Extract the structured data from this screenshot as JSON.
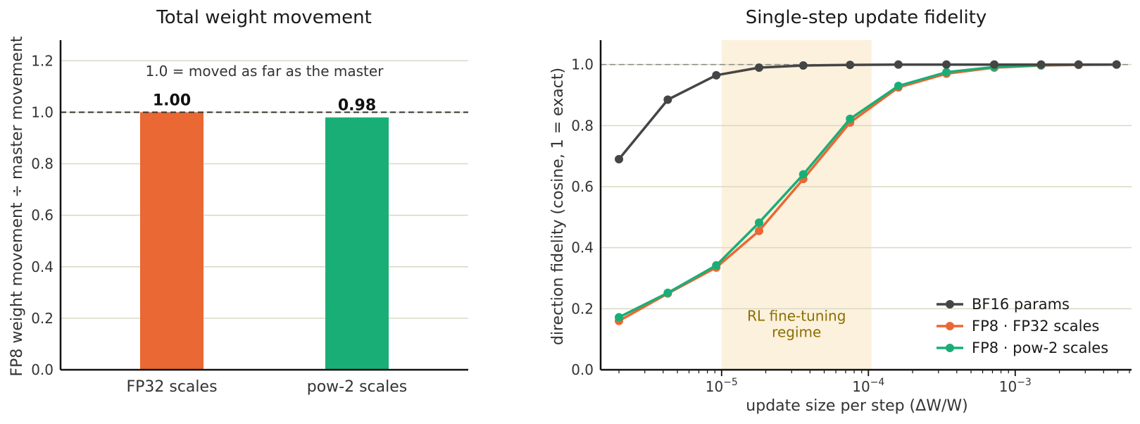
{
  "chart_data": [
    {
      "type": "bar",
      "title": "Total weight movement",
      "xlabel": "",
      "ylabel": "FP8 weight movement ÷ master movement",
      "categories": [
        "FP32 scales",
        "pow-2 scales"
      ],
      "values": [
        1.0,
        0.98
      ],
      "value_labels": [
        "1.00",
        "0.98"
      ],
      "colors": [
        "#e96834",
        "#1aae77"
      ],
      "ylim": [
        0,
        1.28
      ],
      "yticks": [
        0.0,
        0.2,
        0.4,
        0.6,
        0.8,
        1.0,
        1.2
      ],
      "ytick_labels": [
        "0.0",
        "0.2",
        "0.4",
        "0.6",
        "0.8",
        "1.0",
        "1.2"
      ],
      "reference_line": 1.0,
      "annotation": "1.0 = moved as far as the master",
      "grid": "horizontal"
    },
    {
      "type": "line",
      "title": "Single-step update fidelity",
      "xlabel": "update size per step (ΔW/W)",
      "ylabel": "direction fidelity (cosine, 1 = exact)",
      "xscale": "log",
      "xlim": [
        1.5e-06,
        0.0062
      ],
      "ylim": [
        0,
        1.08
      ],
      "yticks": [
        0.0,
        0.2,
        0.4,
        0.6,
        0.8,
        1.0
      ],
      "ytick_labels": [
        "0.0",
        "0.2",
        "0.4",
        "0.6",
        "0.8",
        "1.0"
      ],
      "xticks": [
        {
          "value": 1e-05,
          "base": "10",
          "exp": "−5"
        },
        {
          "value": 0.0001,
          "base": "10",
          "exp": "−4"
        },
        {
          "value": 0.001,
          "base": "10",
          "exp": "−3"
        }
      ],
      "reference_line": 1.0,
      "shaded_region": {
        "x": [
          1e-05,
          0.000105
        ],
        "label": [
          "RL fine-tuning",
          "regime"
        ],
        "color": "#fcf1dc"
      },
      "x": [
        2e-06,
        4.3e-06,
        9.2e-06,
        1.8e-05,
        3.6e-05,
        7.5e-05,
        0.00016,
        0.00034,
        0.00072,
        0.0015,
        0.0027,
        0.0049
      ],
      "series": [
        {
          "name": "BF16 params",
          "color": "#454545",
          "values": [
            0.69,
            0.885,
            0.965,
            0.99,
            0.997,
            0.999,
            1.0,
            1.0,
            1.0,
            1.0,
            1.0,
            1.0
          ]
        },
        {
          "name": "FP8 · FP32 scales",
          "color": "#e96834",
          "values": [
            0.16,
            0.25,
            0.335,
            0.455,
            0.625,
            0.81,
            0.925,
            0.97,
            0.99,
            0.997,
            0.999,
            1.0
          ]
        },
        {
          "name": "FP8 · pow-2 scales",
          "color": "#1aae77",
          "values": [
            0.172,
            0.252,
            0.342,
            0.482,
            0.64,
            0.822,
            0.93,
            0.975,
            0.992,
            0.998,
            1.0,
            1.0
          ]
        }
      ],
      "legend_position": "lower right",
      "grid": "horizontal"
    }
  ]
}
